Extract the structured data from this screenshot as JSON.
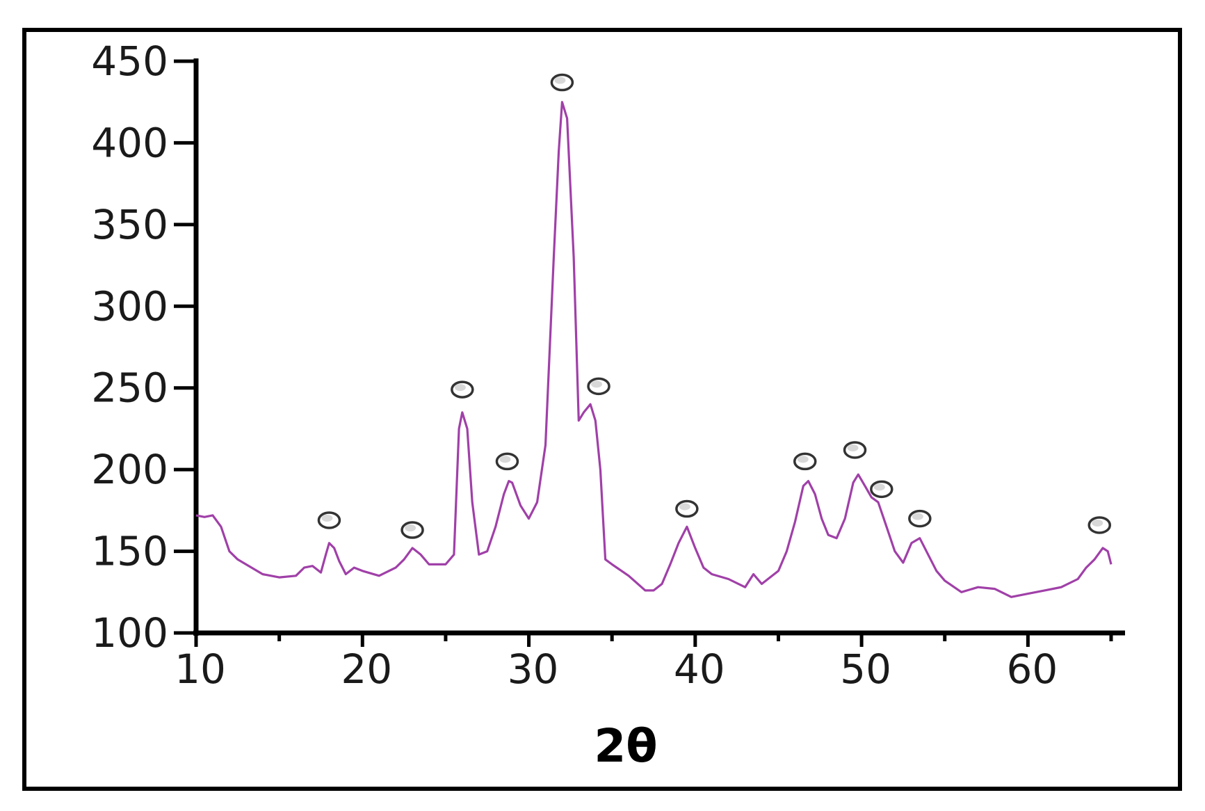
{
  "chart_data": {
    "type": "line",
    "title": "",
    "xlabel": "2θ",
    "ylabel": "",
    "xlim": [
      10,
      65
    ],
    "ylim": [
      100,
      450
    ],
    "xticks": [
      10,
      20,
      30,
      40,
      50,
      60
    ],
    "yticks": [
      100,
      150,
      200,
      250,
      300,
      350,
      400,
      450
    ],
    "grid": false,
    "legend": "none",
    "line_color": "#a040a8",
    "marker_symbol": "○",
    "series": [
      {
        "x": [
          10,
          10.5,
          11,
          11.5,
          12,
          12.5,
          13,
          14,
          15,
          16,
          16.5,
          17,
          17.5,
          17.8,
          18,
          18.3,
          18.6,
          19,
          19.5,
          20,
          21,
          22,
          22.5,
          23,
          23.5,
          24,
          25,
          25.5,
          25.8,
          26,
          26.3,
          26.6,
          27,
          27.5,
          28,
          28.5,
          28.8,
          29,
          29.5,
          30,
          30.5,
          31,
          31.5,
          31.8,
          32,
          32.3,
          32.7,
          33,
          33.3,
          33.7,
          34,
          34.3,
          34.6,
          35,
          36,
          37,
          37.5,
          38,
          38.5,
          39,
          39.5,
          40,
          40.5,
          41,
          42,
          43,
          43.5,
          44,
          45,
          45.5,
          46,
          46.5,
          46.8,
          47.2,
          47.6,
          48,
          48.5,
          49,
          49.5,
          49.8,
          50.2,
          50.6,
          51,
          51.5,
          52,
          52.5,
          53,
          53.5,
          54,
          54.5,
          55,
          56,
          57,
          58,
          59,
          60,
          61,
          62,
          63,
          63.5,
          64,
          64.5,
          64.8,
          65
        ],
        "y": [
          172,
          171,
          172,
          165,
          150,
          145,
          142,
          136,
          134,
          135,
          140,
          141,
          137,
          148,
          155,
          152,
          144,
          136,
          140,
          138,
          135,
          140,
          145,
          152,
          148,
          142,
          142,
          148,
          225,
          235,
          225,
          180,
          148,
          150,
          165,
          185,
          193,
          192,
          178,
          170,
          180,
          215,
          330,
          395,
          425,
          415,
          330,
          230,
          235,
          240,
          230,
          200,
          145,
          142,
          135,
          126,
          126,
          130,
          142,
          155,
          165,
          152,
          140,
          136,
          133,
          128,
          136,
          130,
          138,
          150,
          168,
          190,
          193,
          185,
          170,
          160,
          158,
          170,
          192,
          197,
          190,
          183,
          180,
          165,
          150,
          143,
          155,
          158,
          148,
          138,
          132,
          125,
          128,
          127,
          122,
          124,
          126,
          128,
          133,
          140,
          145,
          152,
          150,
          142
        ]
      }
    ],
    "peak_markers": [
      {
        "x": 18,
        "y": 169
      },
      {
        "x": 23,
        "y": 163
      },
      {
        "x": 26,
        "y": 249
      },
      {
        "x": 28.7,
        "y": 205
      },
      {
        "x": 32,
        "y": 437
      },
      {
        "x": 34.2,
        "y": 251
      },
      {
        "x": 39.5,
        "y": 176
      },
      {
        "x": 46.6,
        "y": 205
      },
      {
        "x": 49.6,
        "y": 212
      },
      {
        "x": 51.2,
        "y": 188
      },
      {
        "x": 53.5,
        "y": 170
      },
      {
        "x": 64.3,
        "y": 166
      }
    ]
  }
}
